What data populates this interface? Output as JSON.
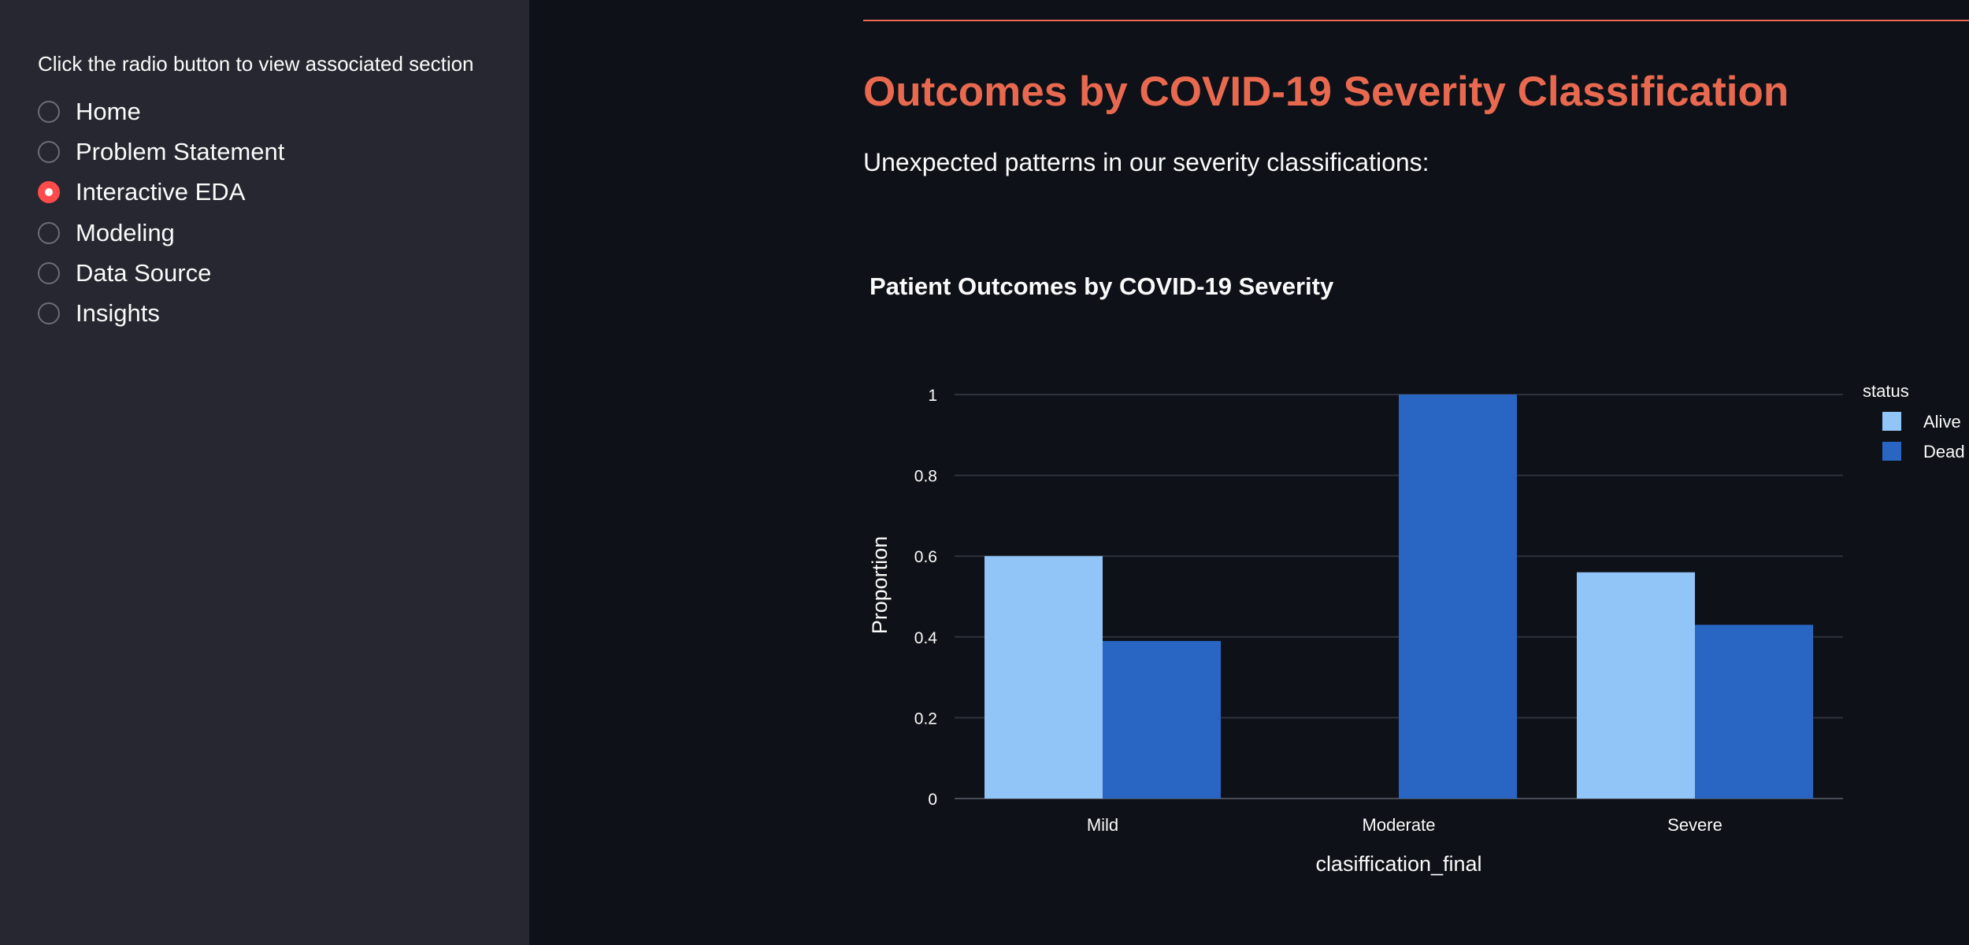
{
  "sidebar": {
    "caption": "Click the radio button to view associated section",
    "items": [
      {
        "label": "Home",
        "selected": false
      },
      {
        "label": "Problem Statement",
        "selected": false
      },
      {
        "label": "Interactive EDA",
        "selected": true
      },
      {
        "label": "Modeling",
        "selected": false
      },
      {
        "label": "Data Source",
        "selected": false
      },
      {
        "label": "Insights",
        "selected": false
      }
    ]
  },
  "main": {
    "title": "Outcomes by COVID-19 Severity Classification",
    "subtitle": "Unexpected patterns in our severity classifications:"
  },
  "colors": {
    "accent": "#e8694f",
    "radio_selected": "#ff4b4b",
    "alive": "#92c5f7",
    "dead": "#2966c4",
    "sidebar_bg": "#262730",
    "main_bg": "#0e1117"
  },
  "chart_data": {
    "type": "bar",
    "title": "Patient Outcomes by COVID-19 Severity",
    "xlabel": "clasiffication_final",
    "ylabel": "Proportion",
    "categories": [
      "Mild",
      "Moderate",
      "Severe"
    ],
    "series": [
      {
        "name": "Alive",
        "values": [
          0.6,
          0,
          0.56
        ],
        "color": "#92c5f7"
      },
      {
        "name": "Dead",
        "values": [
          0.39,
          1,
          0.43
        ],
        "color": "#2966c4"
      }
    ],
    "ylim": [
      0,
      1
    ],
    "yticks": [
      "0",
      "0.2",
      "0.4",
      "0.6",
      "0.8",
      "1"
    ],
    "legend_title": "status",
    "legend_position": "top-right",
    "grid": true
  }
}
